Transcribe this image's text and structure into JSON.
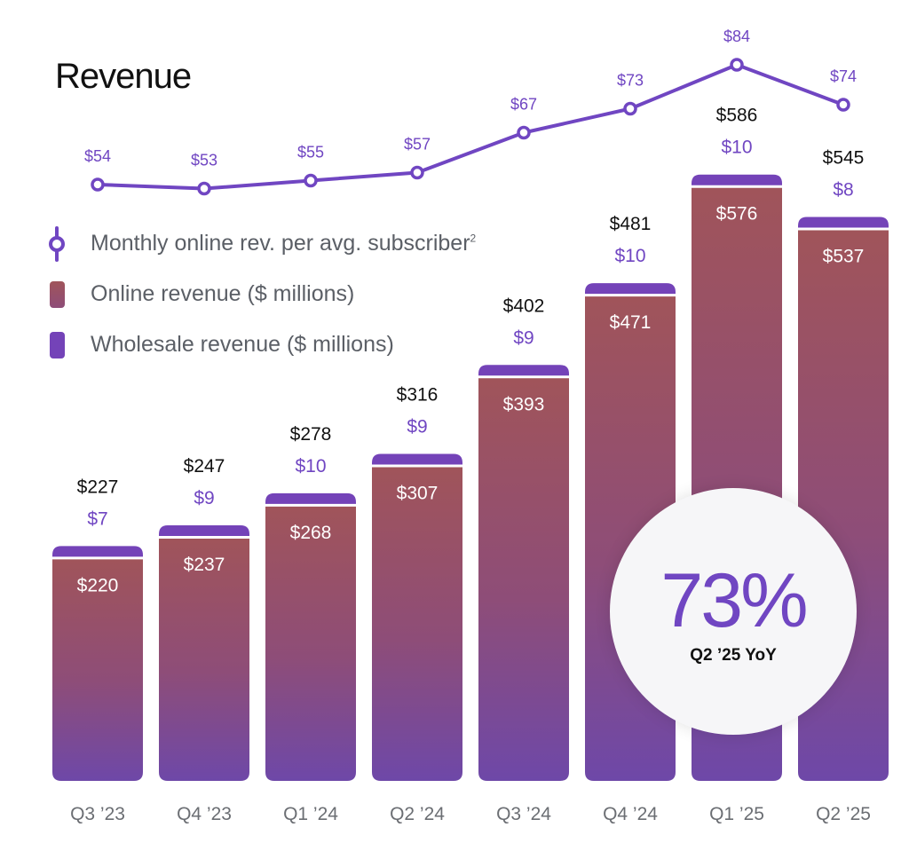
{
  "title": "Revenue",
  "colors": {
    "accent": "#7046c2",
    "wholesale": "#7443b8",
    "online_top": "#a0545a",
    "online_bottom": "#6e48a8",
    "total_label": "#111111",
    "axis_label": "#6b6e73",
    "legend_text": "#5b5f66"
  },
  "legend": [
    {
      "icon": "line-marker-icon",
      "label": "Monthly online rev. per avg. subscriber",
      "footnote": "2"
    },
    {
      "icon": "online-swatch-icon",
      "label": "Online revenue ($ millions)",
      "footnote": ""
    },
    {
      "icon": "wholesale-swatch-icon",
      "label": "Wholesale revenue ($ millions)",
      "footnote": ""
    }
  ],
  "callout": {
    "value": "73%",
    "label": "Q2 ’25 YoY"
  },
  "chart_data": {
    "type": "bar",
    "stacked": true,
    "title": "Revenue",
    "xlabel": "",
    "ylabel": "",
    "ylim": [
      0,
      600
    ],
    "grid": false,
    "legend_position": "top-left",
    "categories": [
      "Q3 ’23",
      "Q4 ’23",
      "Q1 ’24",
      "Q2 ’24",
      "Q3 ’24",
      "Q4 ’24",
      "Q1 ’25",
      "Q2 ’25"
    ],
    "series": [
      {
        "name": "Online revenue ($ millions)",
        "type": "bar",
        "values": [
          220,
          237,
          268,
          307,
          393,
          471,
          576,
          537
        ],
        "labels": [
          "$220",
          "$237",
          "$268",
          "$307",
          "$393",
          "$471",
          "$576",
          "$537"
        ]
      },
      {
        "name": "Wholesale revenue ($ millions)",
        "type": "bar",
        "values": [
          7,
          9,
          10,
          9,
          9,
          10,
          10,
          8
        ],
        "labels": [
          "$7",
          "$9",
          "$10",
          "$9",
          "$9",
          "$10",
          "$10",
          "$8"
        ]
      },
      {
        "name": "Monthly online rev. per avg. subscriber",
        "type": "line",
        "values": [
          54,
          53,
          55,
          57,
          67,
          73,
          84,
          74
        ],
        "labels": [
          "$54",
          "$53",
          "$55",
          "$57",
          "$67",
          "$73",
          "$84",
          "$74"
        ]
      }
    ],
    "totals": [
      227,
      247,
      278,
      316,
      402,
      481,
      586,
      545
    ],
    "total_labels": [
      "$227",
      "$247",
      "$278",
      "$316",
      "$402",
      "$481",
      "$586",
      "$545"
    ]
  }
}
